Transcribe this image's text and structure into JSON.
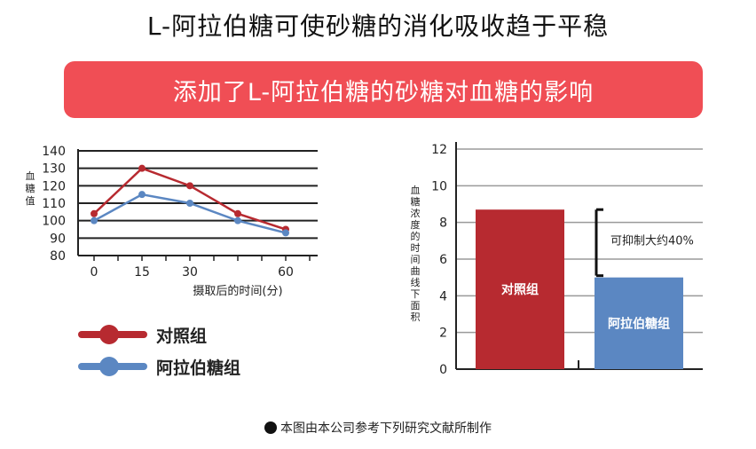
{
  "title": "L-阿拉伯糖可使砂糖的消化吸收趋于平稳",
  "banner": "添加了L-阿拉伯糖的砂糖对血糖的影响",
  "colors": {
    "control": "#b72a30",
    "arabinose": "#5b87c2",
    "banner": "#f04e55"
  },
  "chart_data": [
    {
      "type": "line",
      "ylabel": "血糖值",
      "xlabel": "摄取后的时间(分)",
      "x": [
        0,
        15,
        30,
        45,
        60
      ],
      "xticks": [
        0,
        15,
        30,
        60
      ],
      "ylim": [
        80,
        140
      ],
      "yticks": [
        80,
        90,
        100,
        110,
        120,
        130,
        140
      ],
      "grid": true,
      "series": [
        {
          "name": "对照组",
          "values": [
            104,
            130,
            120,
            104,
            95
          ]
        },
        {
          "name": "阿拉伯糖组",
          "values": [
            100,
            115,
            110,
            100,
            93
          ]
        }
      ],
      "legend": {
        "position": "bottom-left",
        "items": [
          "对照组",
          "阿拉伯糖组"
        ]
      }
    },
    {
      "type": "bar",
      "ylabel": "血糖浓度的时间曲线下面积",
      "categories": [
        "对照组",
        "阿拉伯糖组"
      ],
      "values": [
        8.7,
        5.0
      ],
      "ylim": [
        0,
        12
      ],
      "yticks": [
        0,
        2,
        4,
        6,
        8,
        10,
        12
      ],
      "grid": true,
      "annotation": "可抑制大约40%"
    }
  ],
  "footnote": "本图由本公司参考下列研究文献所制作"
}
